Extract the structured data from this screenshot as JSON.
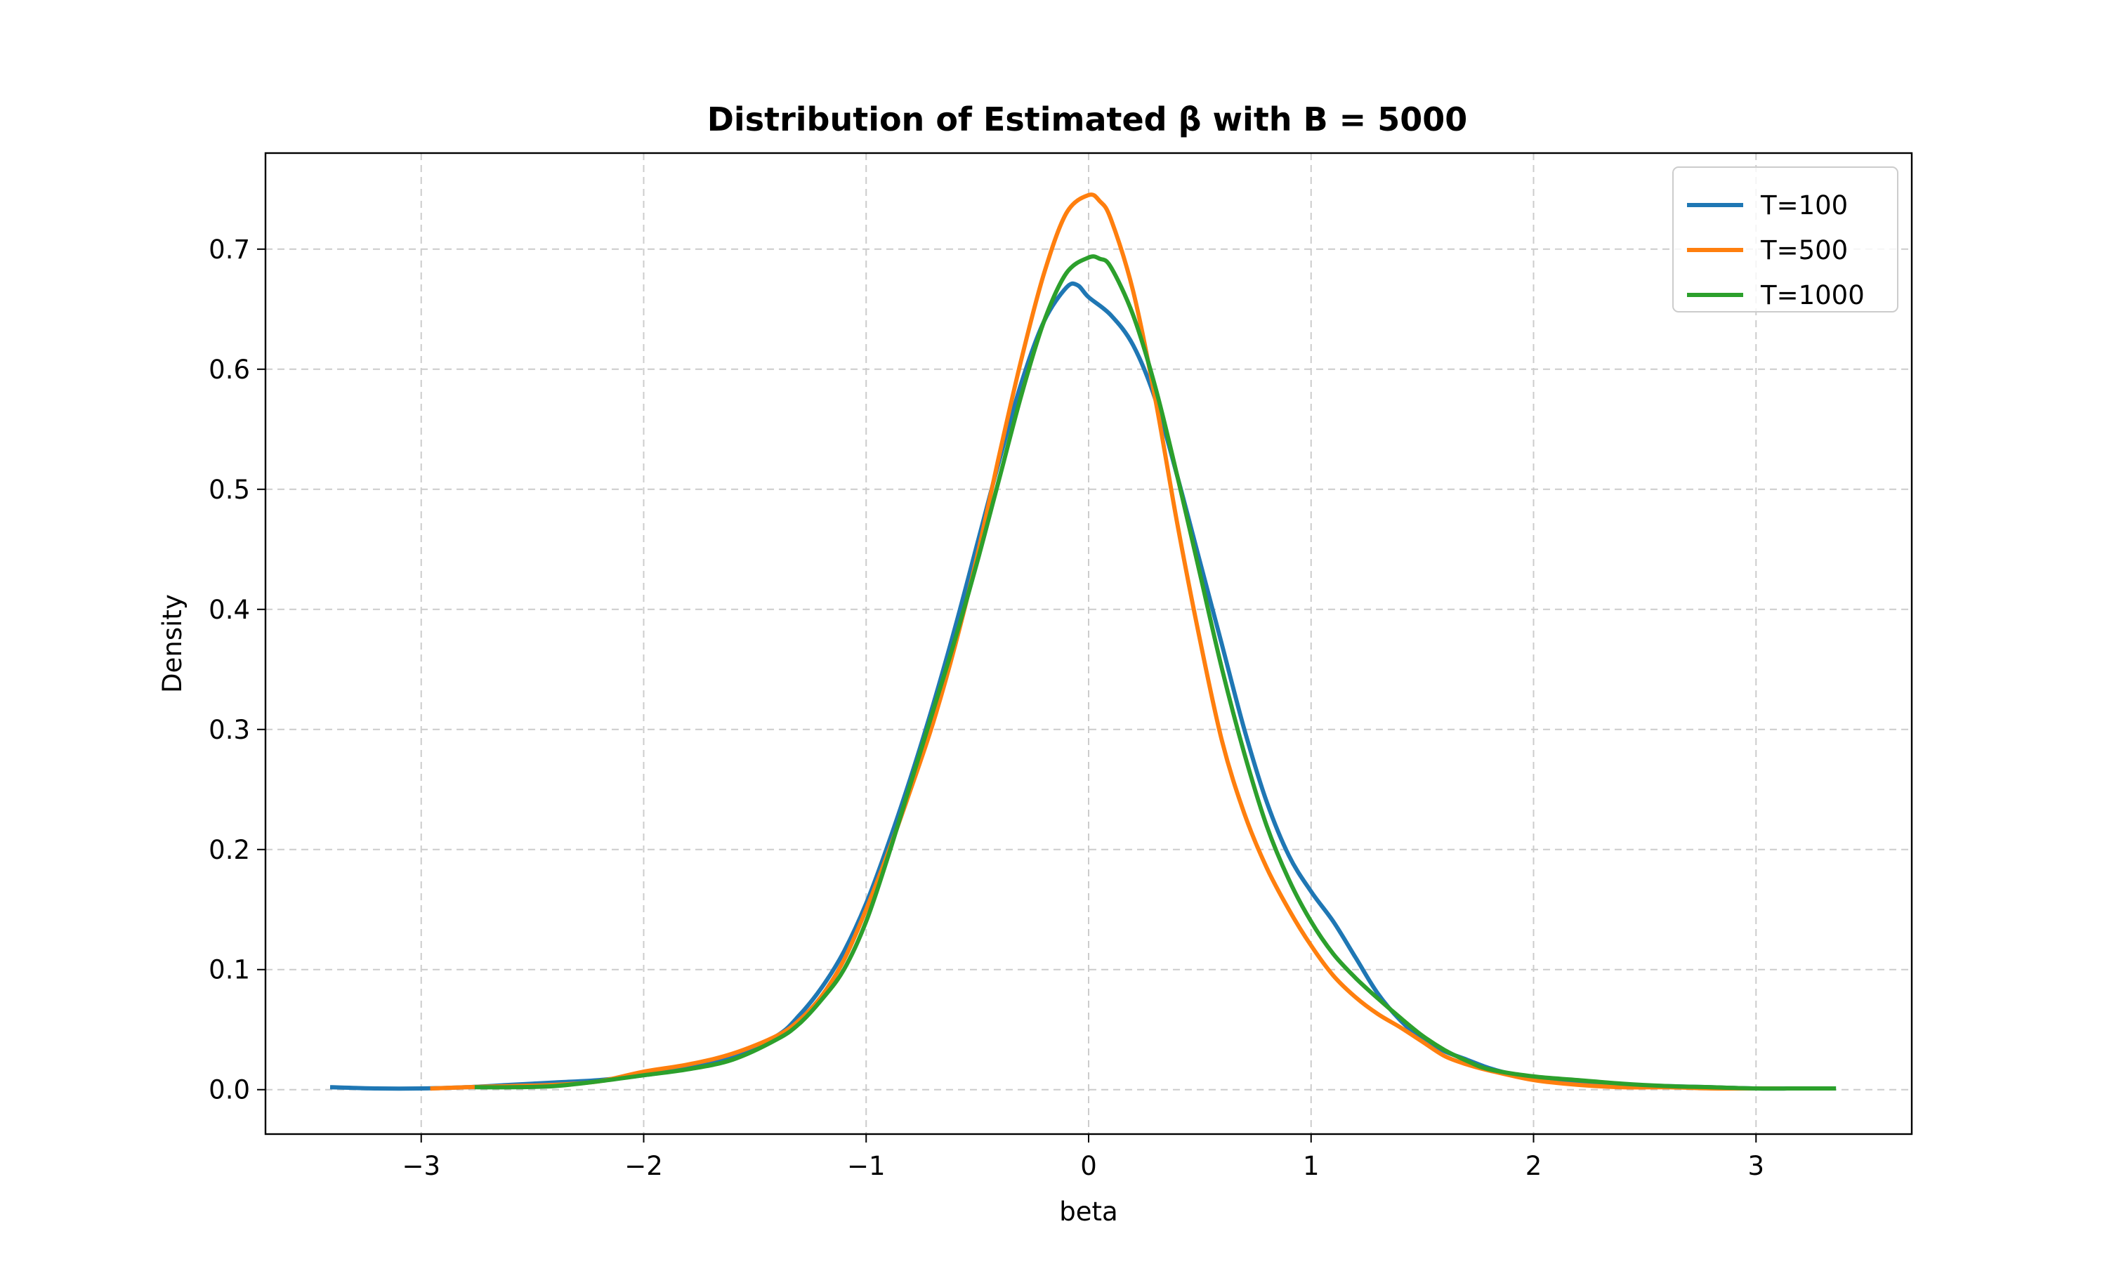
{
  "chart_data": {
    "type": "line",
    "title": "Distribution of Estimated β with B = 5000",
    "xlabel": "beta",
    "ylabel": "Density",
    "xlim": [
      -3.7,
      3.7
    ],
    "ylim": [
      -0.037,
      0.78
    ],
    "xticks": [
      -3,
      -2,
      -1,
      0,
      1,
      2,
      3
    ],
    "xtick_labels": [
      "−3",
      "−2",
      "−1",
      "0",
      "1",
      "2",
      "3"
    ],
    "yticks": [
      0.0,
      0.1,
      0.2,
      0.3,
      0.4,
      0.5,
      0.6,
      0.7
    ],
    "ytick_labels": [
      "0.0",
      "0.1",
      "0.2",
      "0.3",
      "0.4",
      "0.5",
      "0.6",
      "0.7"
    ],
    "grid": true,
    "legend_position": "top-right",
    "series": [
      {
        "name": "T=100",
        "color": "#1f77b4",
        "points": [
          [
            -3.4,
            0.002
          ],
          [
            -3.2,
            0.001
          ],
          [
            -3.0,
            0.001
          ],
          [
            -2.8,
            0.002
          ],
          [
            -2.6,
            0.004
          ],
          [
            -2.4,
            0.006
          ],
          [
            -2.2,
            0.008
          ],
          [
            -2.0,
            0.012
          ],
          [
            -1.8,
            0.018
          ],
          [
            -1.6,
            0.028
          ],
          [
            -1.4,
            0.045
          ],
          [
            -1.3,
            0.062
          ],
          [
            -1.2,
            0.085
          ],
          [
            -1.1,
            0.115
          ],
          [
            -1.0,
            0.155
          ],
          [
            -0.9,
            0.205
          ],
          [
            -0.8,
            0.26
          ],
          [
            -0.7,
            0.32
          ],
          [
            -0.6,
            0.385
          ],
          [
            -0.5,
            0.455
          ],
          [
            -0.4,
            0.525
          ],
          [
            -0.3,
            0.59
          ],
          [
            -0.2,
            0.64
          ],
          [
            -0.1,
            0.668
          ],
          [
            -0.05,
            0.67
          ],
          [
            0.0,
            0.66
          ],
          [
            0.1,
            0.645
          ],
          [
            0.2,
            0.62
          ],
          [
            0.3,
            0.575
          ],
          [
            0.4,
            0.51
          ],
          [
            0.5,
            0.44
          ],
          [
            0.6,
            0.37
          ],
          [
            0.7,
            0.3
          ],
          [
            0.8,
            0.24
          ],
          [
            0.9,
            0.195
          ],
          [
            1.0,
            0.165
          ],
          [
            1.1,
            0.14
          ],
          [
            1.2,
            0.11
          ],
          [
            1.3,
            0.08
          ],
          [
            1.4,
            0.058
          ],
          [
            1.5,
            0.042
          ],
          [
            1.6,
            0.032
          ],
          [
            1.7,
            0.025
          ],
          [
            1.8,
            0.018
          ],
          [
            1.9,
            0.013
          ],
          [
            2.0,
            0.01
          ],
          [
            2.2,
            0.006
          ],
          [
            2.4,
            0.004
          ],
          [
            2.6,
            0.003
          ],
          [
            2.8,
            0.002
          ],
          [
            3.0,
            0.001
          ],
          [
            3.2,
            0.001
          ],
          [
            3.35,
            0.001
          ]
        ]
      },
      {
        "name": "T=500",
        "color": "#ff7f0e",
        "points": [
          [
            -2.95,
            0.001
          ],
          [
            -2.8,
            0.002
          ],
          [
            -2.6,
            0.003
          ],
          [
            -2.4,
            0.004
          ],
          [
            -2.2,
            0.007
          ],
          [
            -2.0,
            0.015
          ],
          [
            -1.8,
            0.021
          ],
          [
            -1.6,
            0.03
          ],
          [
            -1.4,
            0.045
          ],
          [
            -1.3,
            0.058
          ],
          [
            -1.2,
            0.078
          ],
          [
            -1.1,
            0.108
          ],
          [
            -1.0,
            0.15
          ],
          [
            -0.9,
            0.198
          ],
          [
            -0.8,
            0.25
          ],
          [
            -0.7,
            0.305
          ],
          [
            -0.6,
            0.37
          ],
          [
            -0.5,
            0.445
          ],
          [
            -0.4,
            0.53
          ],
          [
            -0.3,
            0.61
          ],
          [
            -0.2,
            0.68
          ],
          [
            -0.1,
            0.73
          ],
          [
            0.0,
            0.745
          ],
          [
            0.05,
            0.74
          ],
          [
            0.1,
            0.725
          ],
          [
            0.2,
            0.665
          ],
          [
            0.3,
            0.575
          ],
          [
            0.4,
            0.47
          ],
          [
            0.5,
            0.375
          ],
          [
            0.6,
            0.29
          ],
          [
            0.7,
            0.23
          ],
          [
            0.8,
            0.185
          ],
          [
            0.9,
            0.15
          ],
          [
            1.0,
            0.12
          ],
          [
            1.1,
            0.095
          ],
          [
            1.2,
            0.077
          ],
          [
            1.3,
            0.063
          ],
          [
            1.4,
            0.052
          ],
          [
            1.5,
            0.04
          ],
          [
            1.6,
            0.028
          ],
          [
            1.7,
            0.021
          ],
          [
            1.8,
            0.016
          ],
          [
            2.0,
            0.008
          ],
          [
            2.2,
            0.004
          ],
          [
            2.4,
            0.002
          ],
          [
            2.6,
            0.002
          ],
          [
            2.8,
            0.001
          ],
          [
            3.0,
            0.001
          ],
          [
            3.1,
            0.001
          ]
        ]
      },
      {
        "name": "T=1000",
        "color": "#2ca02c",
        "points": [
          [
            -2.75,
            0.002
          ],
          [
            -2.6,
            0.002
          ],
          [
            -2.4,
            0.003
          ],
          [
            -2.2,
            0.007
          ],
          [
            -2.0,
            0.012
          ],
          [
            -1.8,
            0.017
          ],
          [
            -1.6,
            0.025
          ],
          [
            -1.4,
            0.042
          ],
          [
            -1.3,
            0.055
          ],
          [
            -1.2,
            0.075
          ],
          [
            -1.1,
            0.1
          ],
          [
            -1.0,
            0.14
          ],
          [
            -0.9,
            0.195
          ],
          [
            -0.8,
            0.255
          ],
          [
            -0.7,
            0.315
          ],
          [
            -0.6,
            0.375
          ],
          [
            -0.5,
            0.44
          ],
          [
            -0.4,
            0.51
          ],
          [
            -0.3,
            0.58
          ],
          [
            -0.2,
            0.64
          ],
          [
            -0.1,
            0.68
          ],
          [
            0.0,
            0.693
          ],
          [
            0.05,
            0.692
          ],
          [
            0.1,
            0.685
          ],
          [
            0.2,
            0.645
          ],
          [
            0.3,
            0.585
          ],
          [
            0.4,
            0.51
          ],
          [
            0.5,
            0.43
          ],
          [
            0.6,
            0.35
          ],
          [
            0.7,
            0.28
          ],
          [
            0.8,
            0.22
          ],
          [
            0.9,
            0.175
          ],
          [
            1.0,
            0.14
          ],
          [
            1.1,
            0.113
          ],
          [
            1.2,
            0.093
          ],
          [
            1.3,
            0.076
          ],
          [
            1.4,
            0.06
          ],
          [
            1.5,
            0.045
          ],
          [
            1.6,
            0.033
          ],
          [
            1.7,
            0.024
          ],
          [
            1.8,
            0.017
          ],
          [
            2.0,
            0.011
          ],
          [
            2.2,
            0.008
          ],
          [
            2.4,
            0.005
          ],
          [
            2.6,
            0.003
          ],
          [
            2.8,
            0.002
          ],
          [
            3.0,
            0.001
          ],
          [
            3.2,
            0.001
          ],
          [
            3.35,
            0.001
          ]
        ]
      }
    ]
  }
}
